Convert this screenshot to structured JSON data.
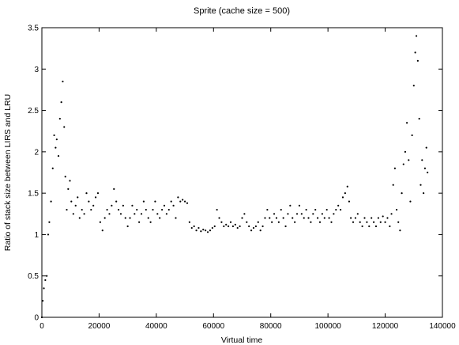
{
  "chart_data": {
    "type": "scatter",
    "title": "Sprite (cache size = 500)",
    "xlabel": "Virtual time",
    "ylabel": "Ratio of stack size between LIRS and LRU",
    "xlim": [
      0,
      140000
    ],
    "ylim": [
      0,
      3.5
    ],
    "xticks": [
      0,
      20000,
      40000,
      60000,
      80000,
      100000,
      120000,
      140000
    ],
    "xtick_labels": [
      "0",
      "20000",
      "40000",
      "60000",
      "80000",
      "100000",
      "120000",
      "140000"
    ],
    "yticks": [
      0,
      0.5,
      1,
      1.5,
      2,
      2.5,
      3,
      3.5
    ],
    "ytick_labels": [
      "0",
      "0.5",
      "1",
      "1.5",
      "2",
      "2.5",
      "3",
      "3.5"
    ],
    "grid": false,
    "legend": false,
    "series": [
      {
        "color": "#000000",
        "points": [
          [
            0,
            0.0
          ],
          [
            300,
            0.2
          ],
          [
            700,
            0.35
          ],
          [
            1200,
            0.45
          ],
          [
            1700,
            0.5
          ],
          [
            2200,
            1.0
          ],
          [
            2600,
            1.15
          ],
          [
            3200,
            1.4
          ],
          [
            3800,
            1.8
          ],
          [
            4300,
            2.2
          ],
          [
            4800,
            2.05
          ],
          [
            5200,
            2.15
          ],
          [
            5800,
            1.95
          ],
          [
            6300,
            2.4
          ],
          [
            6800,
            2.6
          ],
          [
            7300,
            2.85
          ],
          [
            7800,
            2.3
          ],
          [
            8200,
            1.7
          ],
          [
            8700,
            1.3
          ],
          [
            9200,
            1.55
          ],
          [
            9800,
            1.65
          ],
          [
            10300,
            1.4
          ],
          [
            11000,
            1.25
          ],
          [
            11800,
            1.35
          ],
          [
            12500,
            1.45
          ],
          [
            13200,
            1.2
          ],
          [
            14000,
            1.3
          ],
          [
            14800,
            1.25
          ],
          [
            15600,
            1.5
          ],
          [
            16400,
            1.4
          ],
          [
            17200,
            1.3
          ],
          [
            18000,
            1.35
          ],
          [
            18800,
            1.45
          ],
          [
            19600,
            1.5
          ],
          [
            20400,
            1.15
          ],
          [
            21200,
            1.05
          ],
          [
            22000,
            1.2
          ],
          [
            22800,
            1.3
          ],
          [
            23600,
            1.25
          ],
          [
            24400,
            1.35
          ],
          [
            25200,
            1.55
          ],
          [
            26000,
            1.4
          ],
          [
            26800,
            1.3
          ],
          [
            27600,
            1.25
          ],
          [
            28400,
            1.35
          ],
          [
            29200,
            1.2
          ],
          [
            30000,
            1.1
          ],
          [
            30800,
            1.2
          ],
          [
            31600,
            1.35
          ],
          [
            32400,
            1.25
          ],
          [
            33200,
            1.3
          ],
          [
            34000,
            1.15
          ],
          [
            34800,
            1.25
          ],
          [
            35600,
            1.4
          ],
          [
            36400,
            1.3
          ],
          [
            37200,
            1.2
          ],
          [
            38000,
            1.15
          ],
          [
            38800,
            1.3
          ],
          [
            39600,
            1.4
          ],
          [
            40400,
            1.25
          ],
          [
            41200,
            1.2
          ],
          [
            42000,
            1.3
          ],
          [
            42800,
            1.35
          ],
          [
            43600,
            1.25
          ],
          [
            44400,
            1.3
          ],
          [
            45200,
            1.4
          ],
          [
            46000,
            1.35
          ],
          [
            46800,
            1.2
          ],
          [
            47600,
            1.45
          ],
          [
            48400,
            1.4
          ],
          [
            49200,
            1.42
          ],
          [
            50000,
            1.4
          ],
          [
            50800,
            1.38
          ],
          [
            51600,
            1.15
          ],
          [
            52400,
            1.08
          ],
          [
            53200,
            1.1
          ],
          [
            54000,
            1.05
          ],
          [
            54800,
            1.08
          ],
          [
            55600,
            1.04
          ],
          [
            56400,
            1.06
          ],
          [
            57200,
            1.05
          ],
          [
            58000,
            1.03
          ],
          [
            58800,
            1.05
          ],
          [
            59600,
            1.08
          ],
          [
            60400,
            1.1
          ],
          [
            61200,
            1.3
          ],
          [
            62000,
            1.2
          ],
          [
            62800,
            1.15
          ],
          [
            63600,
            1.1
          ],
          [
            64400,
            1.12
          ],
          [
            65200,
            1.1
          ],
          [
            66000,
            1.15
          ],
          [
            66800,
            1.1
          ],
          [
            67600,
            1.12
          ],
          [
            68400,
            1.08
          ],
          [
            69200,
            1.1
          ],
          [
            70000,
            1.2
          ],
          [
            70800,
            1.25
          ],
          [
            71600,
            1.15
          ],
          [
            72400,
            1.1
          ],
          [
            73200,
            1.05
          ],
          [
            74000,
            1.08
          ],
          [
            74800,
            1.1
          ],
          [
            75600,
            1.15
          ],
          [
            76400,
            1.05
          ],
          [
            77200,
            1.1
          ],
          [
            78000,
            1.2
          ],
          [
            78800,
            1.3
          ],
          [
            79600,
            1.2
          ],
          [
            80400,
            1.15
          ],
          [
            81200,
            1.25
          ],
          [
            82000,
            1.2
          ],
          [
            82800,
            1.15
          ],
          [
            83600,
            1.3
          ],
          [
            84400,
            1.2
          ],
          [
            85200,
            1.1
          ],
          [
            86000,
            1.25
          ],
          [
            86800,
            1.35
          ],
          [
            87600,
            1.2
          ],
          [
            88400,
            1.15
          ],
          [
            89200,
            1.25
          ],
          [
            90000,
            1.35
          ],
          [
            90800,
            1.25
          ],
          [
            91600,
            1.2
          ],
          [
            92400,
            1.3
          ],
          [
            93200,
            1.2
          ],
          [
            94000,
            1.15
          ],
          [
            94800,
            1.25
          ],
          [
            95600,
            1.3
          ],
          [
            96400,
            1.2
          ],
          [
            97200,
            1.15
          ],
          [
            98000,
            1.25
          ],
          [
            98800,
            1.2
          ],
          [
            99600,
            1.3
          ],
          [
            100400,
            1.2
          ],
          [
            101200,
            1.15
          ],
          [
            102000,
            1.25
          ],
          [
            102800,
            1.3
          ],
          [
            103600,
            1.35
          ],
          [
            104400,
            1.3
          ],
          [
            105200,
            1.45
          ],
          [
            106000,
            1.5
          ],
          [
            106800,
            1.58
          ],
          [
            107400,
            1.4
          ],
          [
            108000,
            1.2
          ],
          [
            108800,
            1.15
          ],
          [
            109600,
            1.2
          ],
          [
            110400,
            1.25
          ],
          [
            111200,
            1.15
          ],
          [
            112000,
            1.1
          ],
          [
            112800,
            1.2
          ],
          [
            113600,
            1.15
          ],
          [
            114400,
            1.1
          ],
          [
            115200,
            1.2
          ],
          [
            116000,
            1.15
          ],
          [
            116800,
            1.1
          ],
          [
            117600,
            1.2
          ],
          [
            118400,
            1.15
          ],
          [
            119200,
            1.22
          ],
          [
            120000,
            1.15
          ],
          [
            120800,
            1.2
          ],
          [
            121600,
            1.1
          ],
          [
            122200,
            1.25
          ],
          [
            122800,
            1.6
          ],
          [
            123400,
            1.8
          ],
          [
            124000,
            1.3
          ],
          [
            124600,
            1.15
          ],
          [
            125200,
            1.05
          ],
          [
            125800,
            1.5
          ],
          [
            126400,
            1.85
          ],
          [
            127000,
            2.0
          ],
          [
            127600,
            2.35
          ],
          [
            128200,
            1.9
          ],
          [
            128800,
            1.4
          ],
          [
            129400,
            2.2
          ],
          [
            130000,
            2.8
          ],
          [
            130500,
            3.2
          ],
          [
            130900,
            3.4
          ],
          [
            131400,
            3.1
          ],
          [
            131900,
            2.4
          ],
          [
            132400,
            1.6
          ],
          [
            132900,
            1.9
          ],
          [
            133400,
            1.5
          ],
          [
            133900,
            1.8
          ],
          [
            134400,
            2.05
          ],
          [
            134800,
            1.75
          ]
        ]
      }
    ]
  }
}
